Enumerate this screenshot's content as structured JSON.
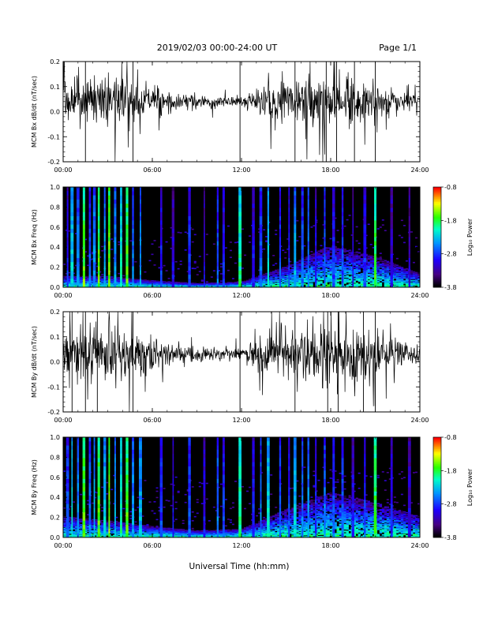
{
  "header": {
    "date_range": "2019/02/03  00:00-24:00 UT",
    "page": "Page 1/1"
  },
  "footer": {
    "xlabel": "Universal Time (hh:mm)"
  },
  "x_ticks": [
    "00:00",
    "06:00",
    "12:00",
    "18:00",
    "24:00"
  ],
  "chart_data": [
    {
      "type": "line",
      "name": "bx-timeseries",
      "ylabel": "MCM Bx dB/dt (nT/sec)",
      "xlim": [
        0,
        24
      ],
      "ylim": [
        -0.2,
        0.2
      ],
      "y_ticks": [
        "0.2",
        "0.1",
        "0.0",
        "-0.1",
        "-0.2"
      ],
      "y_tick_values": [
        0.2,
        0.1,
        0.0,
        -0.1,
        -0.2
      ],
      "line_color": "#000000",
      "mean": 0.04,
      "envelope_hours": [
        0,
        1,
        2,
        3,
        4,
        5,
        6,
        7,
        8,
        9,
        10,
        11,
        12,
        13,
        14,
        15,
        16,
        17,
        18,
        19,
        20,
        21,
        22,
        23,
        24
      ],
      "envelope_amplitude": [
        0.11,
        0.12,
        0.13,
        0.13,
        0.12,
        0.09,
        0.07,
        0.06,
        0.05,
        0.04,
        0.03,
        0.025,
        0.03,
        0.06,
        0.09,
        0.1,
        0.11,
        0.13,
        0.15,
        0.14,
        0.1,
        0.07,
        0.05,
        0.04,
        0.03
      ],
      "spike_hours": [
        1.5,
        4.7,
        11.9,
        15.6,
        17.7,
        18.4,
        19.6,
        21.0
      ]
    },
    {
      "type": "heatmap",
      "name": "bx-spectrogram",
      "ylabel": "MCM Bx Freq (Hz)",
      "xlim": [
        0,
        24
      ],
      "ylim": [
        0,
        1.0
      ],
      "y_ticks": [
        "1.0",
        "0.8",
        "0.6",
        "0.4",
        "0.2",
        "0.0"
      ],
      "y_tick_values": [
        1.0,
        0.8,
        0.6,
        0.4,
        0.2,
        0.0
      ],
      "colorbar": {
        "label": "Log₁₀ Power",
        "ticks": [
          "-0.8",
          "-1.8",
          "-2.8",
          "-3.8"
        ],
        "tick_values": [
          -0.8,
          -1.8,
          -2.8,
          -3.8
        ],
        "range": [
          -3.8,
          -0.8
        ]
      },
      "background_log_power": -3.8,
      "noise_floor_hours": [
        0,
        3,
        6,
        9,
        12,
        15,
        18,
        21,
        24
      ],
      "noise_floor_top_hz": [
        0.08,
        0.08,
        0.05,
        0.03,
        0.04,
        0.15,
        0.3,
        0.22,
        0.1
      ],
      "broadband_events_hours": [
        0.3,
        0.6,
        1.0,
        1.4,
        1.8,
        2.1,
        2.4,
        2.8,
        3.1,
        3.5,
        3.9,
        4.3,
        4.7,
        5.2,
        6.6,
        7.4,
        8.5,
        9.5,
        10.4,
        10.8,
        11.9,
        12.8,
        13.3,
        13.8,
        14.6,
        15.2,
        15.6,
        16.1,
        16.5,
        17.0,
        17.6,
        18.2,
        18.8,
        19.5,
        20.3,
        21.0,
        22.1,
        23.3
      ],
      "broadband_events_log_power": [
        -2.8,
        -2.2,
        -2.5,
        -1.6,
        -2.6,
        -2.4,
        -1.6,
        -2.3,
        -1.5,
        -2.4,
        -2.0,
        -1.6,
        -2.5,
        -2.4,
        -2.8,
        -3.0,
        -2.7,
        -3.0,
        -2.6,
        -2.8,
        -1.9,
        -2.9,
        -2.6,
        -2.2,
        -2.7,
        -2.8,
        -2.3,
        -2.6,
        -2.5,
        -2.9,
        -2.6,
        -2.8,
        -2.7,
        -3.0,
        -2.8,
        -1.7,
        -3.0,
        -3.1
      ]
    },
    {
      "type": "line",
      "name": "by-timeseries",
      "ylabel": "MCM By dB/dt (nT/sec)",
      "xlim": [
        0,
        24
      ],
      "ylim": [
        -0.2,
        0.2
      ],
      "y_ticks": [
        "0.2",
        "0.1",
        "0.0",
        "-0.1",
        "-0.2"
      ],
      "y_tick_values": [
        0.2,
        0.1,
        0.0,
        -0.1,
        -0.2
      ],
      "line_color": "#000000",
      "mean": 0.03,
      "envelope_hours": [
        0,
        1,
        2,
        3,
        4,
        5,
        6,
        7,
        8,
        9,
        10,
        11,
        12,
        13,
        14,
        15,
        16,
        17,
        18,
        19,
        20,
        21,
        22,
        23,
        24
      ],
      "envelope_amplitude": [
        0.12,
        0.14,
        0.15,
        0.16,
        0.14,
        0.1,
        0.08,
        0.06,
        0.05,
        0.04,
        0.03,
        0.03,
        0.03,
        0.07,
        0.12,
        0.14,
        0.15,
        0.17,
        0.17,
        0.15,
        0.12,
        0.1,
        0.08,
        0.07,
        0.06
      ],
      "spike_hours": [
        0.6,
        1.5,
        2.3,
        4.7,
        11.9,
        15.6,
        17.8,
        18.5,
        20.2,
        21.0
      ]
    },
    {
      "type": "heatmap",
      "name": "by-spectrogram",
      "ylabel": "MCM By Freq (Hz)",
      "xlim": [
        0,
        24
      ],
      "ylim": [
        0,
        1.0
      ],
      "y_ticks": [
        "1.0",
        "0.8",
        "0.6",
        "0.4",
        "0.2",
        "0.0"
      ],
      "y_tick_values": [
        1.0,
        0.8,
        0.6,
        0.4,
        0.2,
        0.0
      ],
      "colorbar": {
        "label": "Log₁₀ Power",
        "ticks": [
          "-0.8",
          "-1.8",
          "-2.8",
          "-3.8"
        ],
        "tick_values": [
          -0.8,
          -1.8,
          -2.8,
          -3.8
        ],
        "range": [
          -3.8,
          -0.8
        ]
      },
      "background_log_power": -3.8,
      "noise_floor_hours": [
        0,
        3,
        6,
        9,
        12,
        15,
        18,
        21,
        24
      ],
      "noise_floor_top_hz": [
        0.15,
        0.12,
        0.08,
        0.05,
        0.06,
        0.2,
        0.32,
        0.25,
        0.15
      ],
      "broadband_events_hours": [
        0.3,
        0.6,
        1.0,
        1.4,
        1.8,
        2.1,
        2.4,
        2.8,
        3.1,
        3.5,
        3.9,
        4.3,
        4.7,
        5.2,
        6.6,
        7.4,
        8.5,
        9.5,
        10.4,
        10.8,
        11.9,
        12.8,
        13.3,
        13.8,
        14.6,
        15.2,
        15.6,
        16.1,
        16.5,
        17.0,
        17.6,
        18.2,
        18.8,
        19.5,
        20.3,
        21.0,
        22.1,
        23.3
      ],
      "broadband_events_log_power": [
        -2.6,
        -2.1,
        -2.4,
        -1.6,
        -2.5,
        -2.3,
        -1.6,
        -2.2,
        -1.5,
        -2.3,
        -2.0,
        -1.6,
        -2.4,
        -2.3,
        -2.7,
        -2.9,
        -2.6,
        -2.9,
        -2.5,
        -2.7,
        -1.9,
        -2.8,
        -2.5,
        -2.1,
        -2.6,
        -2.7,
        -2.2,
        -2.5,
        -2.4,
        -2.8,
        -2.5,
        -2.7,
        -2.6,
        -2.9,
        -2.7,
        -1.7,
        -2.9,
        -3.0
      ]
    }
  ]
}
